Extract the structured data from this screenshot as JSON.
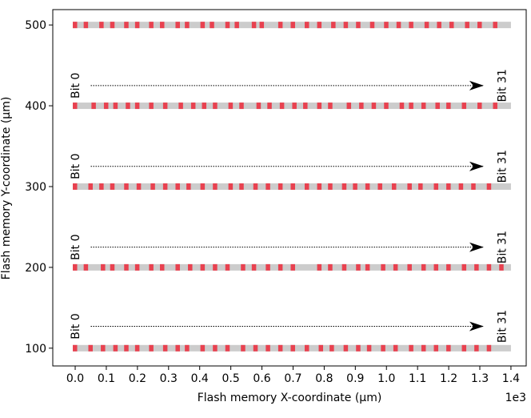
{
  "chart_data": {
    "type": "strip",
    "x_label": "Flash memory X-coordinate (μm)",
    "y_label": "Flash memory Y-coordinate (μm)",
    "x_offset_label": "1e3",
    "xlim": [
      -0.072,
      1.449
    ],
    "ylim": [
      78,
      519
    ],
    "xticks": [
      {
        "value": 0,
        "label": "0.0"
      },
      {
        "value": 0.1,
        "label": "0.1"
      },
      {
        "value": 0.2,
        "label": "0.2"
      },
      {
        "value": 0.3,
        "label": "0.3"
      },
      {
        "value": 0.4,
        "label": "0.4"
      },
      {
        "value": 0.5,
        "label": "0.5"
      },
      {
        "value": 0.6,
        "label": "0.6"
      },
      {
        "value": 0.7,
        "label": "0.7"
      },
      {
        "value": 0.8,
        "label": "0.8"
      },
      {
        "value": 0.9,
        "label": "0.9"
      },
      {
        "value": 1,
        "label": "1.0"
      },
      {
        "value": 1.1,
        "label": "1.1"
      },
      {
        "value": 1.2,
        "label": "1.2"
      },
      {
        "value": 1.3,
        "label": "1.3"
      },
      {
        "value": 1.4,
        "label": "1.4"
      }
    ],
    "yticks": [
      100,
      200,
      300,
      400,
      500
    ],
    "bar_color": "#cccccc",
    "mark_color": "#e8414f",
    "rows": [
      {
        "y": 500,
        "start": 0,
        "end": 1.4,
        "marks": [
          0,
          0.035,
          0.085,
          0.12,
          0.165,
          0.2,
          0.245,
          0.28,
          0.33,
          0.36,
          0.41,
          0.44,
          0.49,
          0.52,
          0.575,
          0.6,
          0.66,
          0.7,
          0.745,
          0.785,
          0.83,
          0.87,
          0.91,
          0.955,
          1.0,
          1.04,
          1.08,
          1.13,
          1.17,
          1.21,
          1.26,
          1.3,
          1.35
        ]
      },
      {
        "y": 400,
        "start": 0,
        "end": 1.4,
        "marks": [
          0,
          0.06,
          0.1,
          0.13,
          0.17,
          0.2,
          0.245,
          0.29,
          0.34,
          0.38,
          0.415,
          0.45,
          0.5,
          0.535,
          0.59,
          0.625,
          0.665,
          0.705,
          0.74,
          0.785,
          0.82,
          0.88,
          0.92,
          0.96,
          1.0,
          1.05,
          1.08,
          1.12,
          1.165,
          1.2,
          1.25,
          1.3,
          1.35
        ]
      },
      {
        "y": 300,
        "start": 0,
        "end": 1.4,
        "marks": [
          0,
          0.05,
          0.085,
          0.12,
          0.165,
          0.205,
          0.25,
          0.29,
          0.33,
          0.365,
          0.41,
          0.45,
          0.5,
          0.535,
          0.58,
          0.62,
          0.66,
          0.7,
          0.745,
          0.785,
          0.82,
          0.865,
          0.9,
          0.94,
          0.98,
          1.025,
          1.075,
          1.11,
          1.16,
          1.2,
          1.24,
          1.28,
          1.33
        ]
      },
      {
        "y": 200,
        "start": 0,
        "end": 1.4,
        "marks": [
          0,
          0.035,
          0.09,
          0.12,
          0.165,
          0.2,
          0.245,
          0.28,
          0.33,
          0.37,
          0.41,
          0.45,
          0.49,
          0.54,
          0.575,
          0.62,
          0.66,
          0.7,
          0.785,
          0.82,
          0.865,
          0.91,
          0.94,
          0.99,
          1.03,
          1.075,
          1.12,
          1.16,
          1.2,
          1.25,
          1.29,
          1.33,
          1.37
        ]
      },
      {
        "y": 100,
        "start": 0,
        "end": 1.4,
        "marks": [
          0,
          0.05,
          0.09,
          0.13,
          0.165,
          0.2,
          0.245,
          0.29,
          0.33,
          0.36,
          0.41,
          0.45,
          0.49,
          0.54,
          0.58,
          0.62,
          0.66,
          0.7,
          0.745,
          0.79,
          0.825,
          0.87,
          0.91,
          0.945,
          0.99,
          1.03,
          1.08,
          1.12,
          1.16,
          1.2,
          1.25,
          1.29,
          1.33
        ]
      }
    ],
    "arrows": [
      {
        "x0": 0.05,
        "x1": 1.31,
        "y": 425,
        "start_label": "Bit 0",
        "end_label": "Bit 31"
      },
      {
        "x0": 0.05,
        "x1": 1.31,
        "y": 325,
        "start_label": "Bit 0",
        "end_label": "Bit 31"
      },
      {
        "x0": 0.05,
        "x1": 1.31,
        "y": 225,
        "start_label": "Bit 0",
        "end_label": "Bit 31"
      },
      {
        "x0": 0.05,
        "x1": 1.31,
        "y": 127,
        "start_label": "Bit 0",
        "end_label": "Bit 31"
      }
    ]
  }
}
